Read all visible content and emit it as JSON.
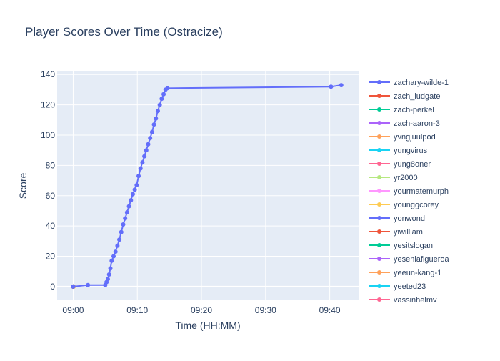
{
  "chart_data": {
    "type": "line",
    "title": "Player Scores Over Time (Ostracize)",
    "xlabel": "Time (HH:MM)",
    "ylabel": "Score",
    "x_ticks": [
      "09:00",
      "09:10",
      "09:20",
      "09:30",
      "09:40"
    ],
    "x_tick_minutes": [
      0,
      10,
      20,
      30,
      40
    ],
    "xlim_minutes": [
      -2.5,
      44.5
    ],
    "y_ticks": [
      0,
      20,
      40,
      60,
      80,
      100,
      120,
      140
    ],
    "ylim": [
      -9,
      142
    ],
    "grid": true,
    "legend_placement": "right",
    "series": [
      {
        "name": "zachary-wilde-1",
        "color": "#636efa",
        "x_minutes": [
          0.0,
          2.3,
          5.0,
          5.2,
          5.4,
          5.6,
          5.8,
          6.0,
          6.3,
          6.6,
          6.9,
          7.2,
          7.5,
          7.8,
          8.1,
          8.4,
          8.7,
          9.0,
          9.3,
          9.6,
          9.9,
          10.2,
          10.5,
          10.8,
          11.1,
          11.4,
          11.7,
          12.0,
          12.3,
          12.6,
          12.9,
          13.2,
          13.5,
          13.8,
          14.1,
          14.4,
          14.7,
          40.2,
          41.8
        ],
        "y": [
          0,
          1,
          1,
          3,
          5,
          8,
          12,
          17,
          20,
          23,
          27,
          31,
          36,
          41,
          45,
          49,
          53,
          57,
          61,
          64,
          67,
          73,
          78,
          82,
          86,
          90,
          94,
          98,
          102,
          107,
          111,
          116,
          120,
          124,
          127,
          130,
          131,
          132,
          133
        ]
      },
      {
        "name": "zach_ludgate",
        "color": "#EF553B",
        "x_minutes": [
          0.0
        ],
        "y": [
          0
        ]
      },
      {
        "name": "zach-perkel",
        "color": "#00cc96",
        "x_minutes": [
          0.0
        ],
        "y": [
          0
        ]
      },
      {
        "name": "zach-aaron-3",
        "color": "#ab63fa",
        "x_minutes": [
          0.0
        ],
        "y": [
          0
        ]
      },
      {
        "name": "yvngjuulpod",
        "color": "#FFA15A",
        "x_minutes": [
          0.0
        ],
        "y": [
          0
        ]
      },
      {
        "name": "yungvirus",
        "color": "#19d3f3",
        "x_minutes": [
          0.0
        ],
        "y": [
          0
        ]
      },
      {
        "name": "yung8oner",
        "color": "#FF6692",
        "x_minutes": [
          0.0
        ],
        "y": [
          0
        ]
      },
      {
        "name": "yr2000",
        "color": "#B6E880",
        "x_minutes": [
          0.0
        ],
        "y": [
          0
        ]
      },
      {
        "name": "yourmatemurph",
        "color": "#FF97FF",
        "x_minutes": [
          0.0
        ],
        "y": [
          0
        ]
      },
      {
        "name": "younggcorey",
        "color": "#FECB52",
        "x_minutes": [
          0.1
        ],
        "y": [
          0
        ]
      },
      {
        "name": "yonwond",
        "color": "#636efa",
        "x_minutes": [
          0.0
        ],
        "y": [
          0
        ]
      },
      {
        "name": "yiwilliam",
        "color": "#EF553B",
        "x_minutes": [
          0.0
        ],
        "y": [
          0
        ]
      },
      {
        "name": "yesitslogan",
        "color": "#00cc96",
        "x_minutes": [
          0.0
        ],
        "y": [
          0
        ]
      },
      {
        "name": "yeseniafigueroa",
        "color": "#ab63fa",
        "x_minutes": [
          0.0
        ],
        "y": [
          0
        ]
      },
      {
        "name": "yeeun-kang-1",
        "color": "#FFA15A",
        "x_minutes": [
          0.0
        ],
        "y": [
          0
        ]
      },
      {
        "name": "yeeted23",
        "color": "#19d3f3",
        "x_minutes": [
          0.0
        ],
        "y": [
          0
        ]
      },
      {
        "name": "yassinhelmy",
        "color": "#FF6692",
        "x_minutes": [
          0.0
        ],
        "y": [
          0
        ]
      }
    ]
  }
}
